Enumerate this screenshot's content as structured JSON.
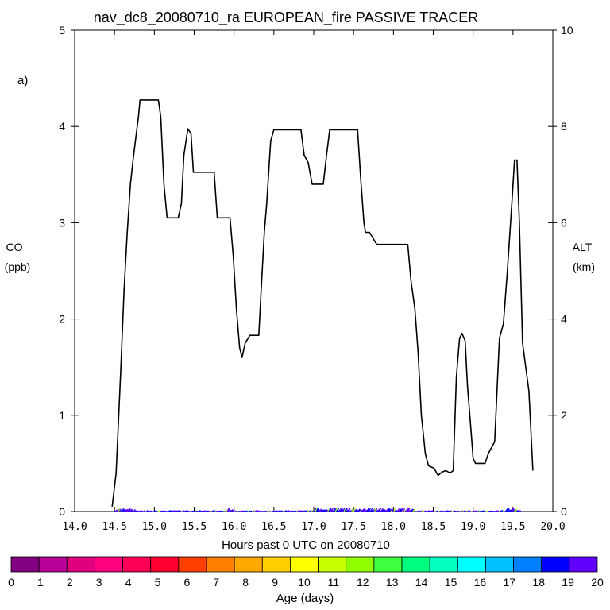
{
  "chart_data": {
    "type": "line",
    "title": "nav_dc8_20080710_ra EUROPEAN_fire PASSIVE TRACER",
    "panel_label": "a)",
    "xlabel": "Hours past 0 UTC on 20080710",
    "ylabel_left": [
      "CO",
      "(ppb)"
    ],
    "ylabel_right": [
      "ALT",
      "(km)"
    ],
    "xlim": [
      14.0,
      20.0
    ],
    "ylim_left": [
      0,
      5
    ],
    "ylim_right": [
      0,
      10
    ],
    "x_ticks": [
      "14.0",
      "14.5",
      "15.0",
      "15.5",
      "16.0",
      "16.5",
      "17.0",
      "17.5",
      "18.0",
      "18.5",
      "19.0",
      "19.5",
      "20.0"
    ],
    "y_ticks_left": [
      "0",
      "1",
      "2",
      "3",
      "4",
      "5"
    ],
    "y_ticks_right": [
      "0",
      "2",
      "4",
      "6",
      "8",
      "10"
    ],
    "grid": false,
    "series": [
      {
        "axis": "right",
        "color": "#000000",
        "points": [
          [
            14.47,
            0.1
          ],
          [
            14.52,
            0.8
          ],
          [
            14.58,
            3.0
          ],
          [
            14.62,
            4.6
          ],
          [
            14.66,
            5.8
          ],
          [
            14.7,
            6.8
          ],
          [
            14.74,
            7.4
          ],
          [
            14.8,
            8.2
          ],
          [
            14.82,
            8.55
          ],
          [
            15.05,
            8.55
          ],
          [
            15.08,
            8.2
          ],
          [
            15.12,
            6.8
          ],
          [
            15.16,
            6.1
          ],
          [
            15.3,
            6.1
          ],
          [
            15.34,
            6.4
          ],
          [
            15.37,
            7.4
          ],
          [
            15.42,
            7.95
          ],
          [
            15.46,
            7.85
          ],
          [
            15.49,
            7.05
          ],
          [
            15.75,
            7.05
          ],
          [
            15.79,
            6.1
          ],
          [
            15.95,
            6.1
          ],
          [
            15.99,
            5.3
          ],
          [
            16.03,
            4.2
          ],
          [
            16.07,
            3.4
          ],
          [
            16.1,
            3.2
          ],
          [
            16.14,
            3.5
          ],
          [
            16.2,
            3.66
          ],
          [
            16.31,
            3.66
          ],
          [
            16.34,
            4.6
          ],
          [
            16.38,
            5.8
          ],
          [
            16.41,
            6.4
          ],
          [
            16.46,
            7.7
          ],
          [
            16.5,
            7.93
          ],
          [
            16.84,
            7.93
          ],
          [
            16.88,
            7.4
          ],
          [
            16.93,
            7.25
          ],
          [
            16.98,
            6.8
          ],
          [
            17.12,
            6.8
          ],
          [
            17.16,
            7.4
          ],
          [
            17.2,
            7.93
          ],
          [
            17.55,
            7.93
          ],
          [
            17.59,
            6.9
          ],
          [
            17.63,
            6.0
          ],
          [
            17.65,
            5.8
          ],
          [
            17.7,
            5.8
          ],
          [
            17.79,
            5.55
          ],
          [
            18.18,
            5.55
          ],
          [
            18.22,
            4.8
          ],
          [
            18.27,
            4.2
          ],
          [
            18.31,
            3.3
          ],
          [
            18.35,
            2.0
          ],
          [
            18.4,
            1.2
          ],
          [
            18.44,
            0.95
          ],
          [
            18.51,
            0.9
          ],
          [
            18.56,
            0.75
          ],
          [
            18.61,
            0.82
          ],
          [
            18.66,
            0.85
          ],
          [
            18.71,
            0.8
          ],
          [
            18.75,
            0.85
          ],
          [
            18.79,
            2.8
          ],
          [
            18.83,
            3.6
          ],
          [
            18.86,
            3.7
          ],
          [
            18.9,
            3.55
          ],
          [
            18.93,
            2.6
          ],
          [
            18.97,
            1.75
          ],
          [
            19.0,
            1.1
          ],
          [
            19.03,
            1.0
          ],
          [
            19.15,
            1.0
          ],
          [
            19.19,
            1.2
          ],
          [
            19.27,
            1.45
          ],
          [
            19.33,
            3.6
          ],
          [
            19.38,
            3.9
          ],
          [
            19.43,
            5.0
          ],
          [
            19.49,
            6.5
          ],
          [
            19.52,
            7.3
          ],
          [
            19.55,
            7.3
          ],
          [
            19.58,
            6.0
          ],
          [
            19.62,
            3.5
          ],
          [
            19.66,
            3.0
          ],
          [
            19.7,
            2.5
          ],
          [
            19.75,
            0.85
          ]
        ]
      }
    ],
    "tracer_trace": {
      "axis": "left",
      "description_units": "ppb",
      "x_range": [
        14.5,
        19.6
      ],
      "approx_max": 0.04
    },
    "colorbar": {
      "label": "Age (days)",
      "tick_labels": [
        "0",
        "1",
        "2",
        "3",
        "4",
        "5",
        "6",
        "7",
        "8",
        "9",
        "10",
        "11",
        "12",
        "13",
        "14",
        "15",
        "16",
        "17",
        "18",
        "19",
        "20"
      ],
      "colors": [
        "#800080",
        "#b8009b",
        "#e0007d",
        "#ff0080",
        "#ff0058",
        "#ff0030",
        "#ff4000",
        "#ff8000",
        "#ffa800",
        "#ffd000",
        "#ffff00",
        "#c8ff00",
        "#90ff00",
        "#40ff40",
        "#00ff80",
        "#00ffc0",
        "#00ffff",
        "#00c0ff",
        "#0080ff",
        "#0000ff",
        "#6000ff"
      ]
    }
  }
}
